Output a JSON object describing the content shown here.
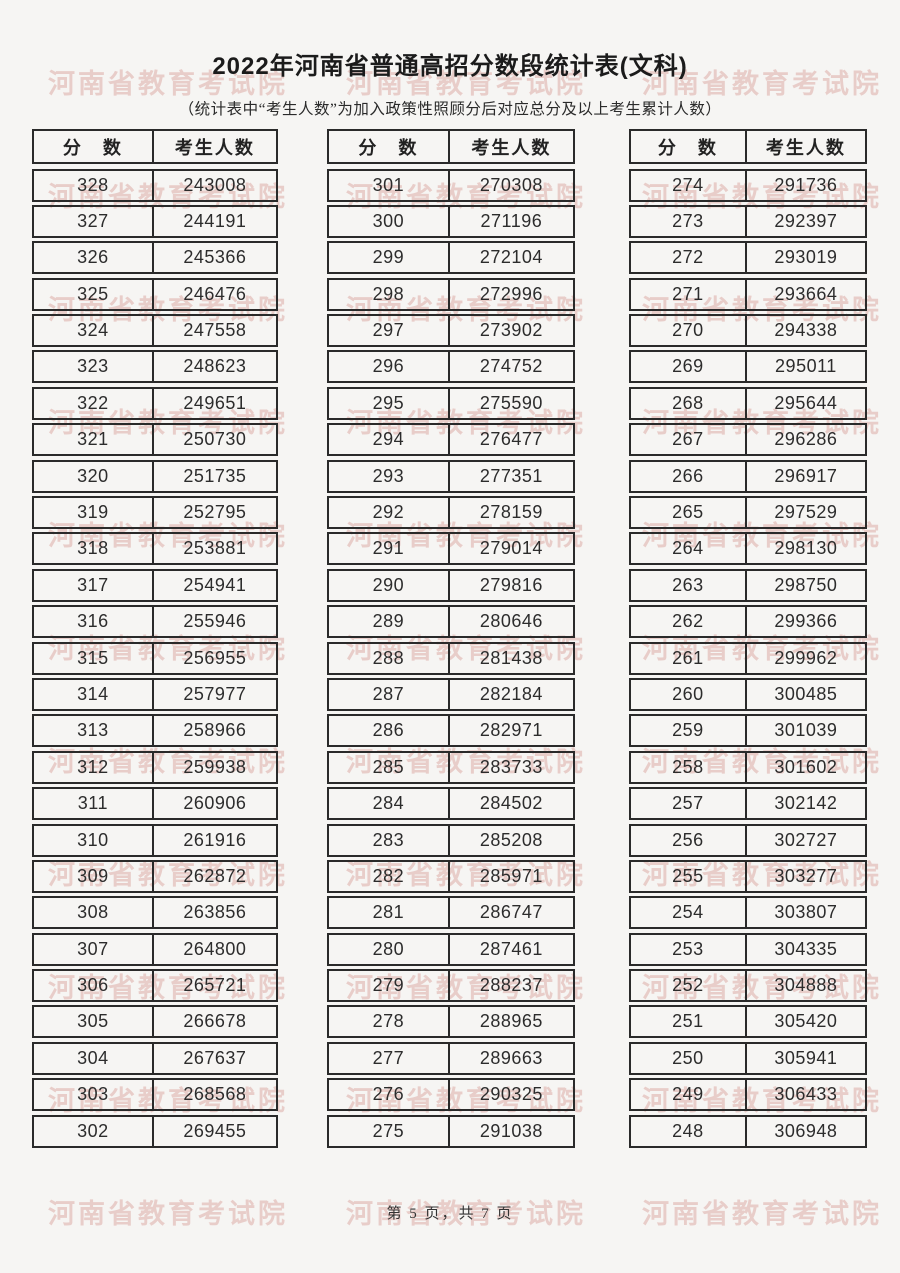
{
  "header": {
    "title": "2022年河南省普通高招分数段统计表(文科)",
    "subtitle": "（统计表中“考生人数”为加入政策性照顾分后对应总分及以上考生累计人数）"
  },
  "columns": {
    "score": "分　数",
    "count": "考生人数"
  },
  "tables": [
    {
      "rows": [
        [
          328,
          243008
        ],
        [
          327,
          244191
        ],
        [
          326,
          245366
        ],
        [
          325,
          246476
        ],
        [
          324,
          247558
        ],
        [
          323,
          248623
        ],
        [
          322,
          249651
        ],
        [
          321,
          250730
        ],
        [
          320,
          251735
        ],
        [
          319,
          252795
        ],
        [
          318,
          253881
        ],
        [
          317,
          254941
        ],
        [
          316,
          255946
        ],
        [
          315,
          256955
        ],
        [
          314,
          257977
        ],
        [
          313,
          258966
        ],
        [
          312,
          259938
        ],
        [
          311,
          260906
        ],
        [
          310,
          261916
        ],
        [
          309,
          262872
        ],
        [
          308,
          263856
        ],
        [
          307,
          264800
        ],
        [
          306,
          265721
        ],
        [
          305,
          266678
        ],
        [
          304,
          267637
        ],
        [
          303,
          268568
        ],
        [
          302,
          269455
        ]
      ]
    },
    {
      "rows": [
        [
          301,
          270308
        ],
        [
          300,
          271196
        ],
        [
          299,
          272104
        ],
        [
          298,
          272996
        ],
        [
          297,
          273902
        ],
        [
          296,
          274752
        ],
        [
          295,
          275590
        ],
        [
          294,
          276477
        ],
        [
          293,
          277351
        ],
        [
          292,
          278159
        ],
        [
          291,
          279014
        ],
        [
          290,
          279816
        ],
        [
          289,
          280646
        ],
        [
          288,
          281438
        ],
        [
          287,
          282184
        ],
        [
          286,
          282971
        ],
        [
          285,
          283733
        ],
        [
          284,
          284502
        ],
        [
          283,
          285208
        ],
        [
          282,
          285971
        ],
        [
          281,
          286747
        ],
        [
          280,
          287461
        ],
        [
          279,
          288237
        ],
        [
          278,
          288965
        ],
        [
          277,
          289663
        ],
        [
          276,
          290325
        ],
        [
          275,
          291038
        ]
      ]
    },
    {
      "rows": [
        [
          274,
          291736
        ],
        [
          273,
          292397
        ],
        [
          272,
          293019
        ],
        [
          271,
          293664
        ],
        [
          270,
          294338
        ],
        [
          269,
          295011
        ],
        [
          268,
          295644
        ],
        [
          267,
          296286
        ],
        [
          266,
          296917
        ],
        [
          265,
          297529
        ],
        [
          264,
          298130
        ],
        [
          263,
          298750
        ],
        [
          262,
          299366
        ],
        [
          261,
          299962
        ],
        [
          260,
          300485
        ],
        [
          259,
          301039
        ],
        [
          258,
          301602
        ],
        [
          257,
          302142
        ],
        [
          256,
          302727
        ],
        [
          255,
          303277
        ],
        [
          254,
          303807
        ],
        [
          253,
          304335
        ],
        [
          252,
          304888
        ],
        [
          251,
          305420
        ],
        [
          250,
          305941
        ],
        [
          249,
          306433
        ],
        [
          248,
          306948
        ]
      ]
    }
  ],
  "watermark": {
    "text": "河南省教育考试院"
  },
  "footer": {
    "text": "第 5 页，共 7 页"
  },
  "colors": {
    "border": "#2a2a2a",
    "text": "#2c2c2c",
    "watermark": "#c7665f",
    "background": "#f6f5f3"
  }
}
